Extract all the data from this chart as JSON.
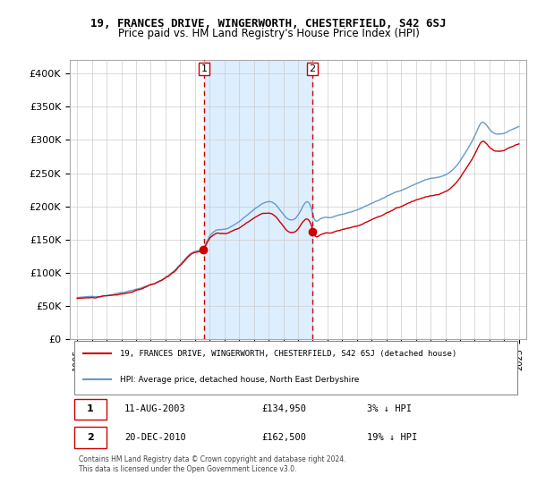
{
  "title1": "19, FRANCES DRIVE, WINGERWORTH, CHESTERFIELD, S42 6SJ",
  "title2": "Price paid vs. HM Land Registry's House Price Index (HPI)",
  "legend_line1": "19, FRANCES DRIVE, WINGERWORTH, CHESTERFIELD, S42 6SJ (detached house)",
  "legend_line2": "HPI: Average price, detached house, North East Derbyshire",
  "table_row1": [
    "1",
    "11-AUG-2003",
    "£134,950",
    "3% ↓ HPI"
  ],
  "table_row2": [
    "2",
    "20-DEC-2010",
    "£162,500",
    "19% ↓ HPI"
  ],
  "footer": "Contains HM Land Registry data © Crown copyright and database right 2024.\nThis data is licensed under the Open Government Licence v3.0.",
  "sale1_date": 2003.61,
  "sale1_price": 134950,
  "sale2_date": 2010.97,
  "sale2_price": 162500,
  "line_color_price": "#cc0000",
  "line_color_hpi": "#6699cc",
  "shade_color": "#ddeeff",
  "vline_color": "#cc0000",
  "background_color": "#ffffff",
  "grid_color": "#cccccc",
  "ylim": [
    0,
    420000
  ],
  "yticks": [
    0,
    50000,
    100000,
    150000,
    200000,
    250000,
    300000,
    350000,
    400000
  ],
  "ytick_labels": [
    "£0",
    "£50K",
    "£100K",
    "£150K",
    "£200K",
    "£250K",
    "£300K",
    "£350K",
    "£400K"
  ],
  "xlim_start": 1994.5,
  "xlim_end": 2025.5
}
